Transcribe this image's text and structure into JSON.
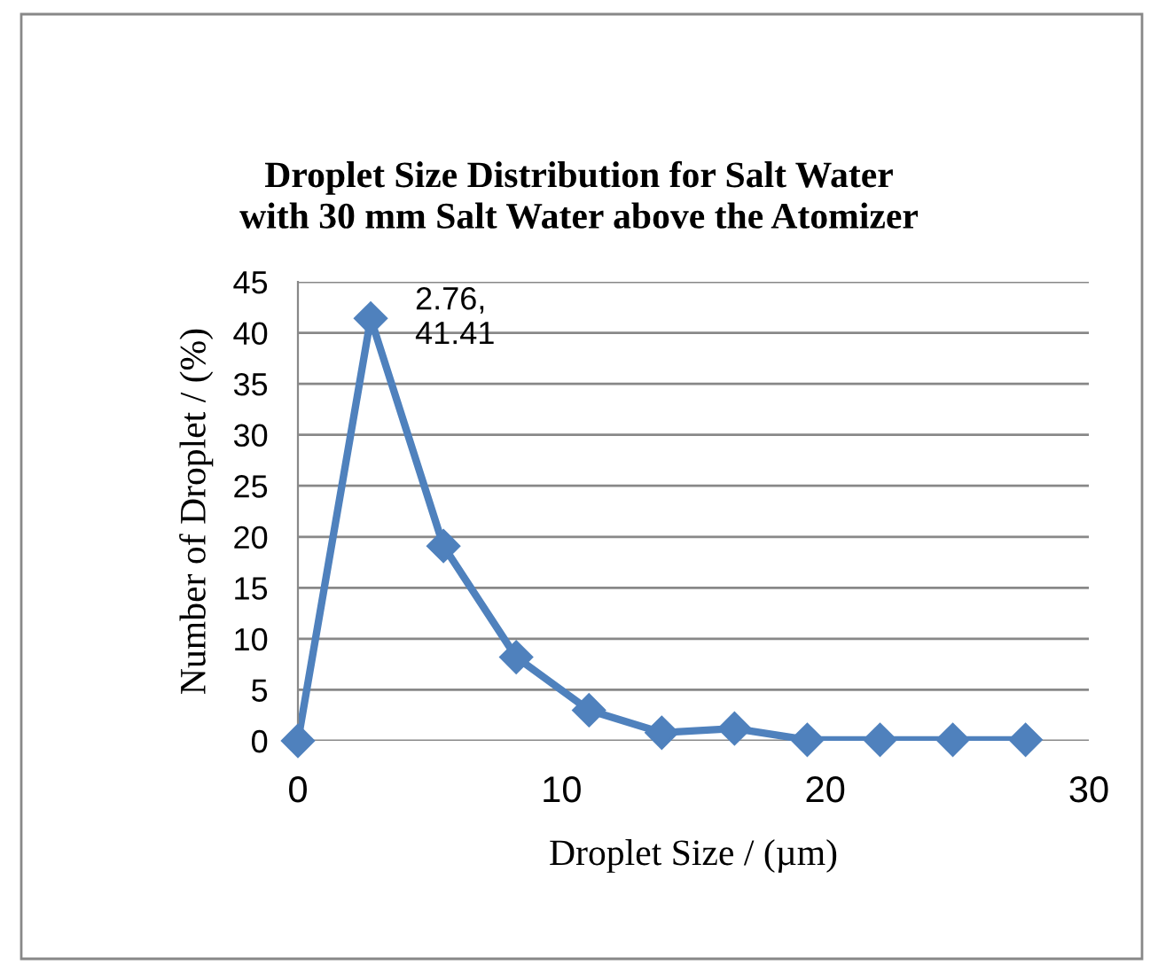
{
  "chart_data": {
    "type": "line",
    "title": "Droplet Size Distribution for Salt Water\nwith 30 mm Salt Water above the Atomizer",
    "xlabel": "Droplet Size / (µm)",
    "ylabel": "Number of Droplet / (%)",
    "x": [
      0,
      2.76,
      5.52,
      8.28,
      11.04,
      13.8,
      16.56,
      19.32,
      22.08,
      24.84,
      27.6
    ],
    "series": [
      {
        "color": "#4f81bd",
        "values": [
          0,
          41.41,
          19.1,
          8.2,
          3.0,
          0.8,
          1.2,
          0.1,
          0.1,
          0.1,
          0.1
        ]
      }
    ],
    "xlim": [
      0,
      30
    ],
    "xticks": [
      0,
      10,
      20,
      30
    ],
    "ylim": [
      0,
      45
    ],
    "yticks": [
      0,
      5,
      10,
      15,
      20,
      25,
      30,
      35,
      40,
      45
    ],
    "grid": "y",
    "marker": "diamond",
    "line_style": "solid",
    "legend": false,
    "annotations": [
      {
        "text": "2.76,\n41.41",
        "x": 2.76,
        "y": 41.41
      }
    ]
  }
}
